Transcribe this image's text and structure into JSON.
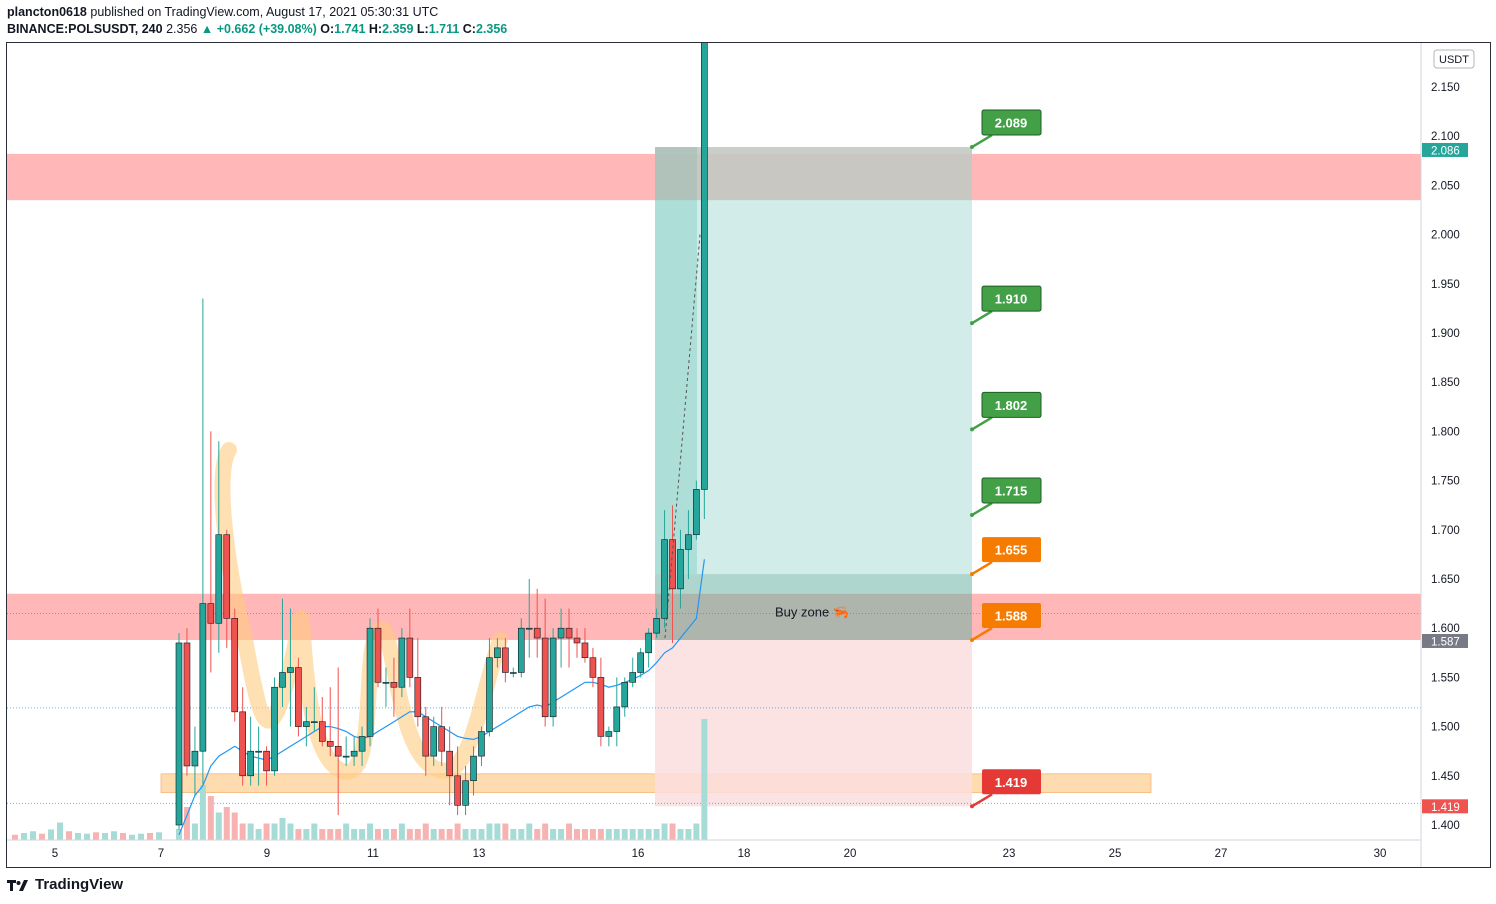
{
  "header": {
    "publisher": "plancton0618",
    "published_text": "published on TradingView.com, August 17, 2021 05:30:31 UTC",
    "symbol": "BINANCE:POLSUSDT, 240",
    "last": "2.356",
    "change": "▲ +0.662 (+39.08%)",
    "o_label": "O:",
    "o": "1.741",
    "h_label": "H:",
    "h": "2.359",
    "l_label": "L:",
    "l": "1.711",
    "c_label": "C:",
    "c": "2.356"
  },
  "footer": {
    "brand": "TradingView"
  },
  "colors": {
    "up": "#26a69a",
    "down": "#ef5350",
    "volume_up": "#a7dcd6",
    "volume_down": "#f7b3b1",
    "red_zone": "#ffb3b3",
    "orange_zone": "#ffd8a8",
    "target_fill": "#c9e9e5",
    "stop_fill": "#fcdede",
    "ma": "#2196f3",
    "green_label": "#43a047",
    "orange_label": "#f57c00",
    "red_label": "#e53935"
  },
  "chart_data": {
    "type": "candlestick",
    "currency": "USDT",
    "ylim": [
      1.375,
      2.19
    ],
    "y_ticks": [
      "1.400",
      "1.450",
      "1.500",
      "1.550",
      "1.600",
      "1.650",
      "1.700",
      "1.750",
      "1.800",
      "1.850",
      "1.900",
      "1.950",
      "2.000",
      "2.050",
      "2.100",
      "2.150"
    ],
    "x_ticks": [
      {
        "label": "5",
        "x": 5.0
      },
      {
        "label": "7",
        "x": 7.0
      },
      {
        "label": "9",
        "x": 9.0
      },
      {
        "label": "11",
        "x": 11.0
      },
      {
        "label": "13",
        "x": 13.0
      },
      {
        "label": "16",
        "x": 16.0
      },
      {
        "label": "18",
        "x": 18.0
      },
      {
        "label": "20",
        "x": 20.0
      },
      {
        "label": "23",
        "x": 23.0
      },
      {
        "label": "25",
        "x": 25.0
      },
      {
        "label": "27",
        "x": 27.0
      },
      {
        "label": "30",
        "x": 30.0
      }
    ],
    "candles": [
      {
        "o": 1.4,
        "h": 1.595,
        "l": 1.395,
        "c": 1.585
      },
      {
        "o": 1.585,
        "h": 1.6,
        "l": 1.45,
        "c": 1.46
      },
      {
        "o": 1.46,
        "h": 1.5,
        "l": 1.43,
        "c": 1.475
      },
      {
        "o": 1.475,
        "h": 1.935,
        "l": 1.44,
        "c": 1.625
      },
      {
        "o": 1.625,
        "h": 1.8,
        "l": 1.555,
        "c": 1.605
      },
      {
        "o": 1.605,
        "h": 1.79,
        "l": 1.575,
        "c": 1.695
      },
      {
        "o": 1.695,
        "h": 1.7,
        "l": 1.58,
        "c": 1.61
      },
      {
        "o": 1.61,
        "h": 1.62,
        "l": 1.505,
        "c": 1.515
      },
      {
        "o": 1.515,
        "h": 1.54,
        "l": 1.44,
        "c": 1.45
      },
      {
        "o": 1.45,
        "h": 1.51,
        "l": 1.44,
        "c": 1.475
      },
      {
        "o": 1.475,
        "h": 1.5,
        "l": 1.44,
        "c": 1.475
      },
      {
        "o": 1.475,
        "h": 1.48,
        "l": 1.44,
        "c": 1.455
      },
      {
        "o": 1.455,
        "h": 1.55,
        "l": 1.45,
        "c": 1.54
      },
      {
        "o": 1.54,
        "h": 1.63,
        "l": 1.52,
        "c": 1.555
      },
      {
        "o": 1.555,
        "h": 1.62,
        "l": 1.5,
        "c": 1.56
      },
      {
        "o": 1.56,
        "h": 1.57,
        "l": 1.49,
        "c": 1.5
      },
      {
        "o": 1.5,
        "h": 1.52,
        "l": 1.48,
        "c": 1.505
      },
      {
        "o": 1.505,
        "h": 1.54,
        "l": 1.495,
        "c": 1.505
      },
      {
        "o": 1.505,
        "h": 1.53,
        "l": 1.48,
        "c": 1.485
      },
      {
        "o": 1.485,
        "h": 1.54,
        "l": 1.47,
        "c": 1.48
      },
      {
        "o": 1.48,
        "h": 1.56,
        "l": 1.41,
        "c": 1.47
      },
      {
        "o": 1.47,
        "h": 1.49,
        "l": 1.46,
        "c": 1.47
      },
      {
        "o": 1.47,
        "h": 1.49,
        "l": 1.46,
        "c": 1.475
      },
      {
        "o": 1.475,
        "h": 1.5,
        "l": 1.46,
        "c": 1.49
      },
      {
        "o": 1.49,
        "h": 1.61,
        "l": 1.48,
        "c": 1.6
      },
      {
        "o": 1.6,
        "h": 1.62,
        "l": 1.54,
        "c": 1.545
      },
      {
        "o": 1.545,
        "h": 1.56,
        "l": 1.52,
        "c": 1.545
      },
      {
        "o": 1.545,
        "h": 1.57,
        "l": 1.51,
        "c": 1.54
      },
      {
        "o": 1.54,
        "h": 1.6,
        "l": 1.53,
        "c": 1.59
      },
      {
        "o": 1.59,
        "h": 1.62,
        "l": 1.54,
        "c": 1.55
      },
      {
        "o": 1.55,
        "h": 1.59,
        "l": 1.5,
        "c": 1.51
      },
      {
        "o": 1.51,
        "h": 1.52,
        "l": 1.45,
        "c": 1.47
      },
      {
        "o": 1.47,
        "h": 1.51,
        "l": 1.46,
        "c": 1.5
      },
      {
        "o": 1.5,
        "h": 1.52,
        "l": 1.46,
        "c": 1.475
      },
      {
        "o": 1.475,
        "h": 1.5,
        "l": 1.42,
        "c": 1.45
      },
      {
        "o": 1.45,
        "h": 1.48,
        "l": 1.41,
        "c": 1.42
      },
      {
        "o": 1.42,
        "h": 1.46,
        "l": 1.41,
        "c": 1.445
      },
      {
        "o": 1.445,
        "h": 1.48,
        "l": 1.43,
        "c": 1.47
      },
      {
        "o": 1.47,
        "h": 1.5,
        "l": 1.46,
        "c": 1.495
      },
      {
        "o": 1.495,
        "h": 1.59,
        "l": 1.49,
        "c": 1.57
      },
      {
        "o": 1.57,
        "h": 1.59,
        "l": 1.56,
        "c": 1.58
      },
      {
        "o": 1.58,
        "h": 1.59,
        "l": 1.545,
        "c": 1.555
      },
      {
        "o": 1.555,
        "h": 1.56,
        "l": 1.55,
        "c": 1.555
      },
      {
        "o": 1.555,
        "h": 1.61,
        "l": 1.55,
        "c": 1.6
      },
      {
        "o": 1.6,
        "h": 1.65,
        "l": 1.57,
        "c": 1.6
      },
      {
        "o": 1.6,
        "h": 1.64,
        "l": 1.57,
        "c": 1.59
      },
      {
        "o": 1.59,
        "h": 1.63,
        "l": 1.5,
        "c": 1.51
      },
      {
        "o": 1.51,
        "h": 1.6,
        "l": 1.5,
        "c": 1.59
      },
      {
        "o": 1.59,
        "h": 1.62,
        "l": 1.56,
        "c": 1.6
      },
      {
        "o": 1.6,
        "h": 1.62,
        "l": 1.56,
        "c": 1.59
      },
      {
        "o": 1.59,
        "h": 1.6,
        "l": 1.57,
        "c": 1.585
      },
      {
        "o": 1.585,
        "h": 1.6,
        "l": 1.565,
        "c": 1.57
      },
      {
        "o": 1.57,
        "h": 1.58,
        "l": 1.54,
        "c": 1.55
      },
      {
        "o": 1.55,
        "h": 1.57,
        "l": 1.48,
        "c": 1.49
      },
      {
        "o": 1.49,
        "h": 1.5,
        "l": 1.48,
        "c": 1.495
      },
      {
        "o": 1.495,
        "h": 1.55,
        "l": 1.48,
        "c": 1.52
      },
      {
        "o": 1.52,
        "h": 1.55,
        "l": 1.51,
        "c": 1.545
      },
      {
        "o": 1.545,
        "h": 1.57,
        "l": 1.54,
        "c": 1.555
      },
      {
        "o": 1.555,
        "h": 1.58,
        "l": 1.55,
        "c": 1.575
      },
      {
        "o": 1.575,
        "h": 1.6,
        "l": 1.56,
        "c": 1.595
      },
      {
        "o": 1.595,
        "h": 1.62,
        "l": 1.59,
        "c": 1.61
      },
      {
        "o": 1.61,
        "h": 1.72,
        "l": 1.6,
        "c": 1.69
      },
      {
        "o": 1.69,
        "h": 1.725,
        "l": 1.585,
        "c": 1.64
      },
      {
        "o": 1.64,
        "h": 1.7,
        "l": 1.62,
        "c": 1.68
      },
      {
        "o": 1.68,
        "h": 1.72,
        "l": 1.65,
        "c": 1.695
      },
      {
        "o": 1.695,
        "h": 1.75,
        "l": 1.69,
        "c": 1.741
      },
      {
        "o": 1.741,
        "h": 2.359,
        "l": 1.711,
        "c": 2.356
      }
    ],
    "zones": [
      {
        "name": "upper-resistance",
        "y1": 2.035,
        "y2": 2.082
      },
      {
        "name": "mid-resistance",
        "y1": 1.588,
        "y2": 1.635
      },
      {
        "name": "support-orange",
        "y1": 1.433,
        "y2": 1.452
      }
    ],
    "position": {
      "entry_top": 1.655,
      "entry_bottom": 1.588,
      "target": 2.089,
      "stop": 1.419,
      "entry_note": "Buy zone 🦐"
    },
    "levels": [
      {
        "value": "2.089",
        "color": "green"
      },
      {
        "value": "1.910",
        "color": "green"
      },
      {
        "value": "1.802",
        "color": "green"
      },
      {
        "value": "1.715",
        "color": "green"
      },
      {
        "value": "1.655",
        "color": "orange"
      },
      {
        "value": "1.588",
        "color": "orange"
      },
      {
        "value": "1.419",
        "color": "red"
      }
    ],
    "axis_badges": [
      {
        "value": "2.086",
        "color": "teal"
      },
      {
        "value": "1.587",
        "color": "gray"
      },
      {
        "value": "1.419",
        "color": "red"
      }
    ]
  }
}
